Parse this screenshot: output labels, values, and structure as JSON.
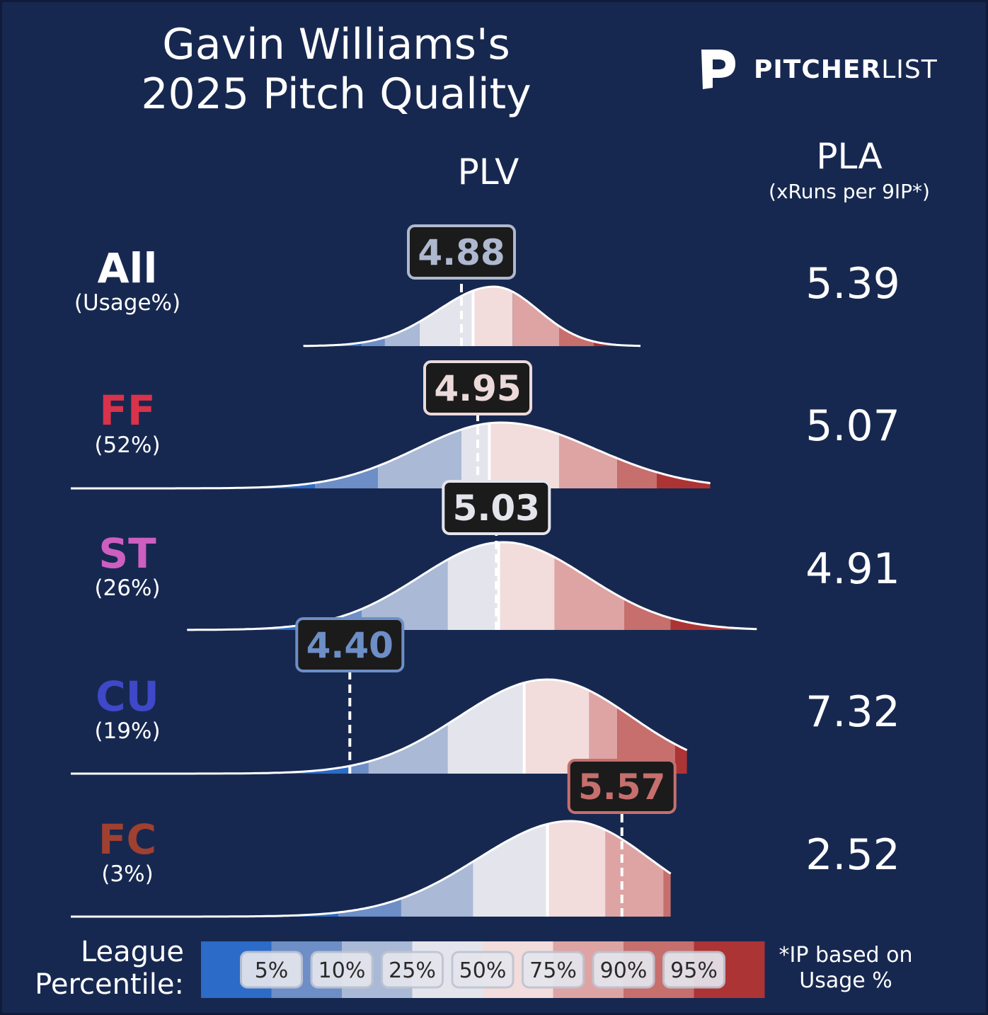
{
  "title_line1": "Gavin Williams's",
  "title_line2": "2025 Pitch Quality",
  "brand": {
    "bold": "PITCHER",
    "light": "LIST"
  },
  "headers": {
    "plv": "PLV",
    "pla": "PLA",
    "pla_sub": "(xRuns per 9IP*)"
  },
  "footer": {
    "league_percentile_line1": "League",
    "league_percentile_line2": "Percentile:",
    "ip_note_line1": "*IP based on",
    "ip_note_line2": "Usage %"
  },
  "colors": {
    "background": "#172850",
    "percentile_bands": [
      "#2c6bc7",
      "#6d8ec6",
      "#a9b9d6",
      "#e4e5ec",
      "#f2dcdc",
      "#dda4a3",
      "#c66f6d",
      "#ad3434"
    ]
  },
  "chart_data": {
    "type": "density",
    "title": "Gavin Williams's 2025 Pitch Quality",
    "xlabel": "PLV",
    "legend_title": "League Percentile:",
    "percentile_labels": [
      "5%",
      "10%",
      "25%",
      "50%",
      "75%",
      "90%",
      "95%"
    ],
    "pitches": [
      {
        "name": "All",
        "usage": "(Usage%)",
        "name_color": "#ffffff",
        "plv": "4.88",
        "plv_value": 4.88,
        "pla": "5.39",
        "badge_color": "#aeb9cf",
        "percentile_points": [
          4.45,
          4.55,
          4.7,
          4.93,
          5.1,
          5.3,
          5.45
        ]
      },
      {
        "name": "FF",
        "usage": "(52%)",
        "name_color": "#d9324a",
        "plv": "4.95",
        "plv_value": 4.95,
        "pla": "5.07",
        "badge_color": "#ecd9d9",
        "percentile_points": [
          4.25,
          4.52,
          4.88,
          5.0,
          5.3,
          5.55,
          5.72
        ]
      },
      {
        "name": "ST",
        "usage": "(26%)",
        "name_color": "#cc5fbf",
        "plv": "5.03",
        "plv_value": 5.03,
        "pla": "4.91",
        "badge_color": "#e4e5ec",
        "percentile_points": [
          4.18,
          4.45,
          4.82,
          5.04,
          5.28,
          5.58,
          5.78
        ]
      },
      {
        "name": "CU",
        "usage": "(19%)",
        "name_color": "#3e48c8",
        "plv": "4.40",
        "plv_value": 4.4,
        "pla": "7.32",
        "badge_color": "#6d8ec6",
        "percentile_points": [
          4.4,
          4.48,
          4.82,
          5.15,
          5.43,
          5.55,
          5.8
        ]
      },
      {
        "name": "FC",
        "usage": "(3%)",
        "name_color": "#a04030",
        "plv": "5.57",
        "plv_value": 5.57,
        "pla": "2.52",
        "badge_color": "#c66f6d",
        "percentile_points": [
          4.35,
          4.62,
          4.93,
          5.25,
          5.5,
          5.75,
          5.85
        ]
      }
    ]
  }
}
